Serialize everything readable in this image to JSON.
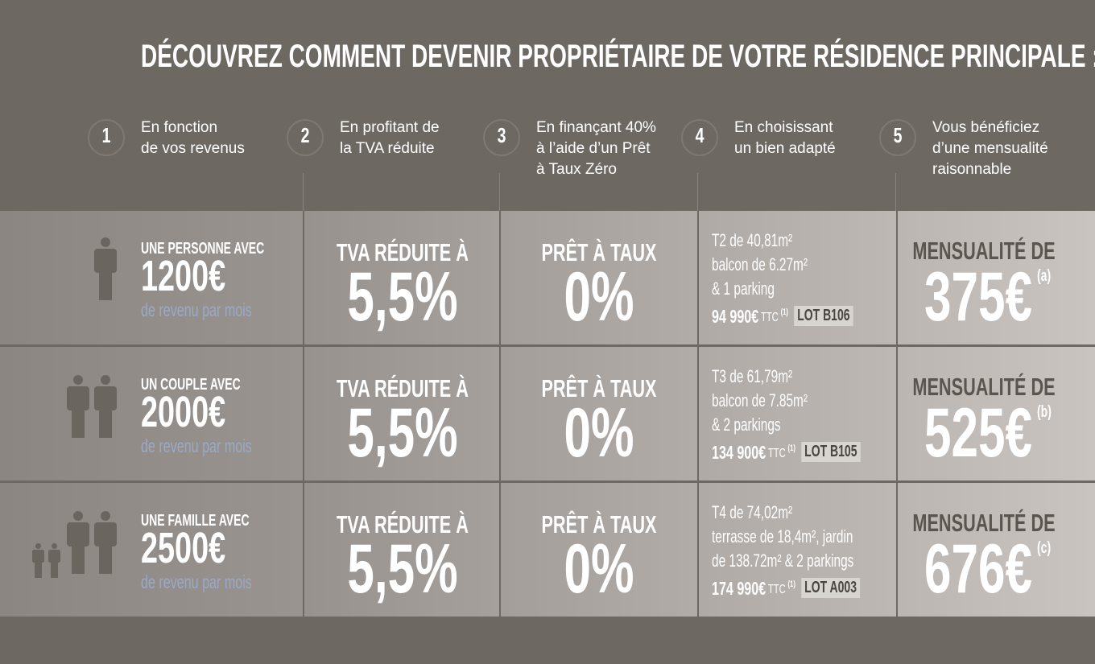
{
  "title": "DÉCOUVREZ COMMENT DEVENIR PROPRIÉTAIRE DE VOTRE RÉSIDENCE PRINCIPALE :",
  "steps": [
    {
      "number": "1",
      "lines": [
        "En fonction",
        "de vos revenus"
      ]
    },
    {
      "number": "2",
      "lines": [
        "En profitant de",
        "la TVA réduite"
      ]
    },
    {
      "number": "3",
      "lines": [
        "En finançant 40%",
        "à l’aide d’un Prêt",
        "à Taux Zéro"
      ]
    },
    {
      "number": "4",
      "lines": [
        "En choisissant",
        "un bien adapté"
      ]
    },
    {
      "number": "5",
      "lines": [
        "Vous bénéficiez",
        "d’une mensualité",
        "raisonnable"
      ]
    }
  ],
  "rows": [
    {
      "profile": {
        "lead": "UNE PERSONNE AVEC",
        "amount": "1200€",
        "note": "de revenu par mois"
      },
      "tva": {
        "label": "TVA RÉDUITE À",
        "value": "5,5%"
      },
      "ptz": {
        "label": "PRÊT À TAUX",
        "value": "0%"
      },
      "property": {
        "lines": [
          "T2 de 40,81m²",
          "balcon de 6.27m²",
          "& 1 parking"
        ],
        "price": "94 990€",
        "ttc": "TTC",
        "ref": "(1)",
        "lot": "LOT B106"
      },
      "monthly": {
        "label": "MENSUALITÉ DE",
        "amount": "375€",
        "ref": "(a)"
      }
    },
    {
      "profile": {
        "lead": "UN COUPLE AVEC",
        "amount": "2000€",
        "note": "de revenu par mois"
      },
      "tva": {
        "label": "TVA RÉDUITE À",
        "value": "5,5%"
      },
      "ptz": {
        "label": "PRÊT À TAUX",
        "value": "0%"
      },
      "property": {
        "lines": [
          "T3 de 61,79m²",
          "balcon de 7.85m²",
          "& 2 parkings"
        ],
        "price": "134 900€",
        "ttc": "TTC",
        "ref": "(1)",
        "lot": "LOT B105"
      },
      "monthly": {
        "label": "MENSUALITÉ DE",
        "amount": "525€",
        "ref": "(b)"
      }
    },
    {
      "profile": {
        "lead": "UNE FAMILLE AVEC",
        "amount": "2500€",
        "note": "de revenu par mois"
      },
      "tva": {
        "label": "TVA RÉDUITE À",
        "value": "5,5%"
      },
      "ptz": {
        "label": "PRÊT À TAUX",
        "value": "0%"
      },
      "property": {
        "lines": [
          "T4 de 74,02m²",
          "terrasse de 18,4m², jardin",
          "de 138.72m² & 2 parkings"
        ],
        "price": "174 990€",
        "ttc": "TTC",
        "ref": "(1)",
        "lot": "LOT A003"
      },
      "monthly": {
        "label": "MENSUALITÉ DE",
        "amount": "676€",
        "ref": "(c)"
      }
    }
  ]
}
